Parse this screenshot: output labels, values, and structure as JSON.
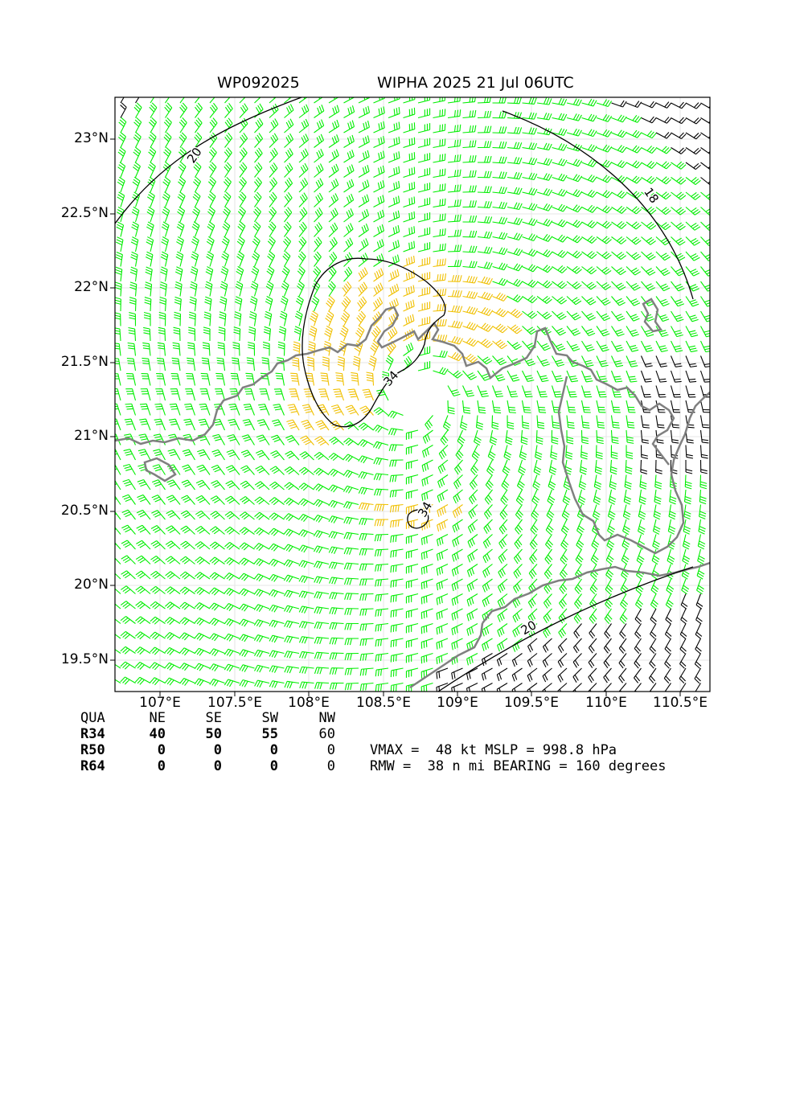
{
  "title": {
    "storm_id": "WP092025",
    "storm_name_time": "WIPHA 2025 21 Jul 06UTC"
  },
  "lat_labels": [
    "23°N",
    "22.5°N",
    "22°N",
    "21.5°N",
    "21°N",
    "20.5°N",
    "20°N",
    "19.5°N"
  ],
  "lon_labels": [
    "107°E",
    "107.5°E",
    "108°E",
    "108.5°E",
    "109°E",
    "109.5°E",
    "110°E",
    "110.5°E"
  ],
  "contour_labels": [
    "20",
    "18",
    "34",
    "34",
    "20"
  ],
  "colors": {
    "wind_34": "#00ee00",
    "wind_50": "#f0c000",
    "wind_under": "#000000",
    "coastline": "#808080"
  },
  "wind_radii": {
    "header": [
      "QUA",
      "NE",
      "SE",
      "SW",
      "NW"
    ],
    "rows": [
      {
        "label": "R34",
        "values": [
          "40",
          "50",
          "55",
          "60"
        ]
      },
      {
        "label": "R50",
        "values": [
          "0",
          "0",
          "0",
          "0"
        ]
      },
      {
        "label": "R64",
        "values": [
          "0",
          "0",
          "0",
          "0"
        ]
      }
    ]
  },
  "stats": {
    "line1": "VMAX =  48 kt MSLP = 998.8 hPa",
    "line2": "RMW =  38 n mi BEARING = 160 degrees"
  }
}
